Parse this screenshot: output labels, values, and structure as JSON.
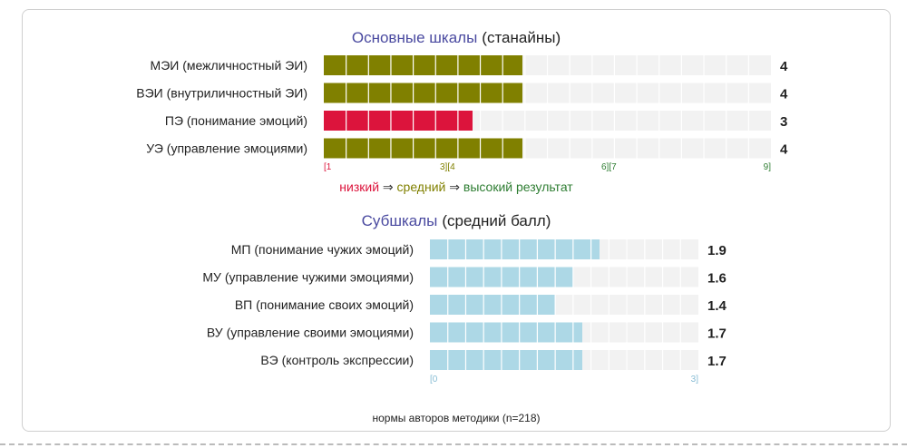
{
  "chart_data": [
    {
      "type": "bar",
      "title": "Основные шкалы",
      "title_suffix": "(станайны)",
      "scale_max": 9,
      "segments": 20,
      "categories": [
        "МЭИ (межличностный ЭИ)",
        "ВЭИ (внутриличностный ЭИ)",
        "ПЭ (понимание эмоций)",
        "УЭ (управление эмоциями)"
      ],
      "values": [
        4,
        4,
        3,
        4
      ],
      "score_labels": [
        "4",
        "4",
        "3",
        "4"
      ],
      "bar_levels": [
        "medium",
        "medium",
        "low",
        "medium"
      ],
      "tick_labels": [
        {
          "text": "[1",
          "color": "#dc143c"
        },
        {
          "text": "3][4",
          "color": "#808000"
        },
        {
          "text": "6][7",
          "color": "#2e7d32"
        },
        {
          "text": "9]",
          "color": "#2e7d32"
        }
      ],
      "legend": [
        {
          "text": "низкий",
          "color": "#dc143c"
        },
        {
          "text": " ⇒ ",
          "color": "#333333"
        },
        {
          "text": "средний",
          "color": "#808000"
        },
        {
          "text": " ⇒ ",
          "color": "#333333"
        },
        {
          "text": "высокий результат",
          "color": "#2e7d32"
        }
      ],
      "colors": {
        "low": "#dc143c",
        "medium": "#808000",
        "high": "#2e7d32"
      }
    },
    {
      "type": "bar",
      "title": "Субшкалы",
      "title_suffix": "(средний балл)",
      "scale_max": 3,
      "segments": 15,
      "categories": [
        "МП (понимание чужих эмоций)",
        "МУ (управление чужими эмоциями)",
        "ВП (понимание своих эмоций)",
        "ВУ (управление своими эмоциями)",
        "ВЭ (контроль экспрессии)"
      ],
      "values": [
        1.9,
        1.6,
        1.4,
        1.7,
        1.7
      ],
      "score_labels": [
        "1.9",
        "1.6",
        "1.4",
        "1.7",
        "1.7"
      ],
      "tick_labels": [
        {
          "text": "[0",
          "color": "#87bcd4"
        },
        {
          "text": "3]",
          "color": "#87bcd4"
        }
      ],
      "colors": {
        "fill": "#add8e6",
        "track": "#f2f2f2"
      }
    }
  ],
  "footer": {
    "norms": "нормы авторов методики (n=218)"
  }
}
